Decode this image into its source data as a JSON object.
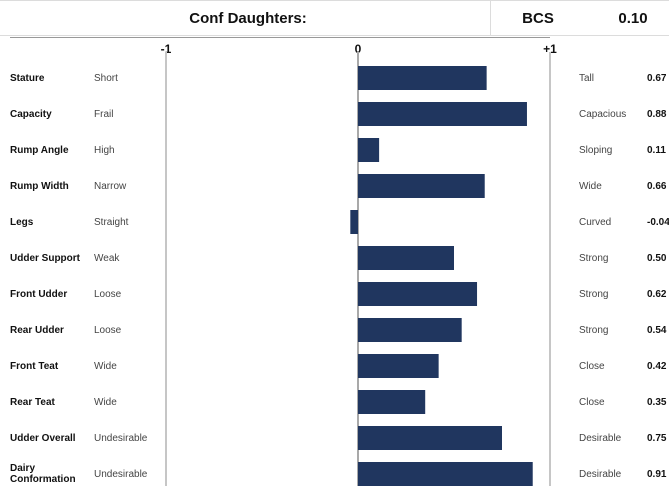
{
  "header": {
    "title": "Conf Daughters:",
    "bcs_label": "BCS",
    "bcs_value": "0.10"
  },
  "colors": {
    "bar": "#20365f"
  },
  "chart_data": {
    "type": "bar",
    "orientation": "horizontal",
    "xlim": [
      -1,
      1
    ],
    "tick_labels": [
      "-1",
      "0",
      "+1"
    ],
    "categories": [
      "Stature",
      "Capacity",
      "Rump Angle",
      "Rump Width",
      "Legs",
      "Udder Support",
      "Front Udder",
      "Rear Udder",
      "Front Teat",
      "Rear Teat",
      "Udder Overall",
      "Dairy Conformation"
    ],
    "low_labels": [
      "Short",
      "Frail",
      "High",
      "Narrow",
      "Straight",
      "Weak",
      "Loose",
      "Loose",
      "Wide",
      "Wide",
      "Undesirable",
      "Undesirable"
    ],
    "high_labels": [
      "Tall",
      "Capacious",
      "Sloping",
      "Wide",
      "Curved",
      "Strong",
      "Strong",
      "Strong",
      "Close",
      "Close",
      "Desirable",
      "Desirable"
    ],
    "values": [
      0.67,
      0.88,
      0.11,
      0.66,
      -0.04,
      0.5,
      0.62,
      0.54,
      0.42,
      0.35,
      0.75,
      0.91
    ],
    "value_labels": [
      "0.67",
      "0.88",
      "0.11",
      "0.66",
      "-0.04",
      "0.50",
      "0.62",
      "0.54",
      "0.42",
      "0.35",
      "0.75",
      "0.91"
    ]
  }
}
